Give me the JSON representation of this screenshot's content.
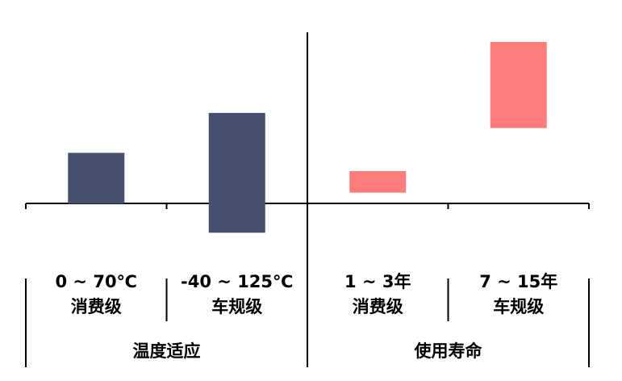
{
  "chart_data": {
    "type": "range_bar",
    "groups": [
      {
        "name": "温度适应",
        "categories": [
          "0 ~ 70℃",
          "-40 ~ 125℃"
        ],
        "sublabels": [
          "消费级",
          "车规级"
        ],
        "low": [
          0,
          -40
        ],
        "high": [
          70,
          125
        ],
        "color": "#465170",
        "ylim": [
          -53,
          236
        ]
      },
      {
        "name": "使用寿命",
        "categories": [
          "1 ~ 3年",
          "7 ~ 15年"
        ],
        "sublabels": [
          "消费级",
          "车规级"
        ],
        "low": [
          1,
          7
        ],
        "high": [
          3,
          15
        ],
        "color": "#ff7c7c",
        "ylim": [
          -3.6,
          15.9
        ]
      }
    ]
  }
}
